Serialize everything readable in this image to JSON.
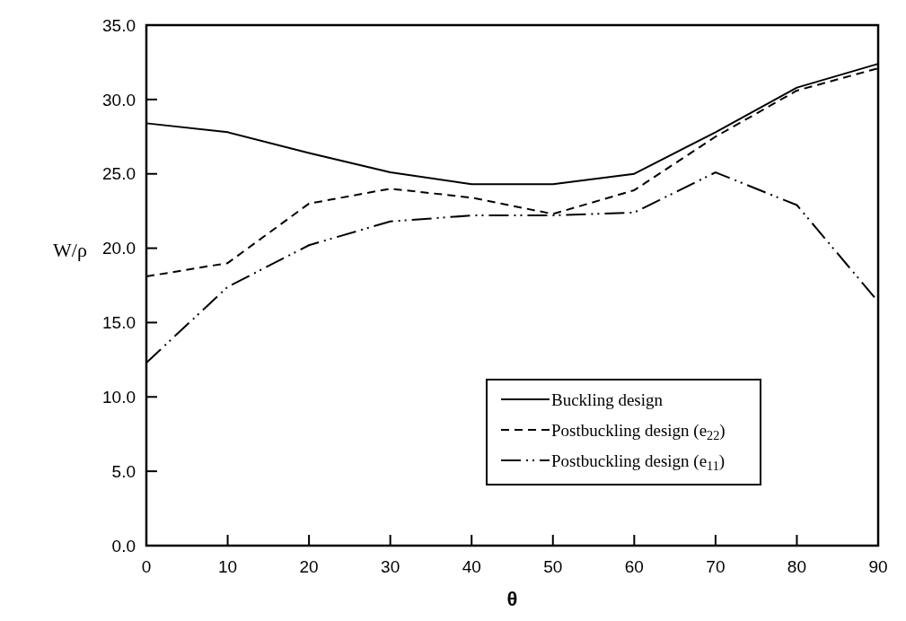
{
  "chart_data": {
    "type": "line",
    "xlabel": "θ",
    "ylabel": "W/ρ",
    "x": [
      0,
      10,
      20,
      30,
      40,
      50,
      60,
      70,
      80,
      90
    ],
    "xlim": [
      0,
      90
    ],
    "xticks": [
      0,
      10,
      20,
      30,
      40,
      50,
      60,
      70,
      80,
      90
    ],
    "ylim": [
      0,
      35
    ],
    "yticks": [
      {
        "value": 0,
        "label": "0.0"
      },
      {
        "value": 5,
        "label": "5.0"
      },
      {
        "value": 10,
        "label": "10.0"
      },
      {
        "value": 15,
        "label": "15.0"
      },
      {
        "value": 20,
        "label": "20.0"
      },
      {
        "value": 25,
        "label": "25.0"
      },
      {
        "value": 30,
        "label": "30.0"
      },
      {
        "value": 35,
        "label": "35.0"
      }
    ],
    "series": [
      {
        "name": "Buckling design",
        "color": "#000000",
        "line_style": "solid",
        "values": [
          28.4,
          27.8,
          26.4,
          25.1,
          24.3,
          24.3,
          25.0,
          27.8,
          30.8,
          32.4
        ]
      },
      {
        "name": "Postbuckling design (e$_{22}$)",
        "color": "#000000",
        "line_style": "dashed",
        "values": [
          18.1,
          19.0,
          23.0,
          24.0,
          23.4,
          22.3,
          23.9,
          27.5,
          30.6,
          32.1
        ]
      },
      {
        "name": "Postbuckling design (e$_{11}$)",
        "color": "#000000",
        "line_style": "dashdotdot",
        "values": [
          12.3,
          17.4,
          20.2,
          21.8,
          22.2,
          22.2,
          22.4,
          25.1,
          22.9,
          16.4
        ]
      }
    ],
    "grid": false,
    "legend": "bottom right",
    "marker": "none"
  }
}
